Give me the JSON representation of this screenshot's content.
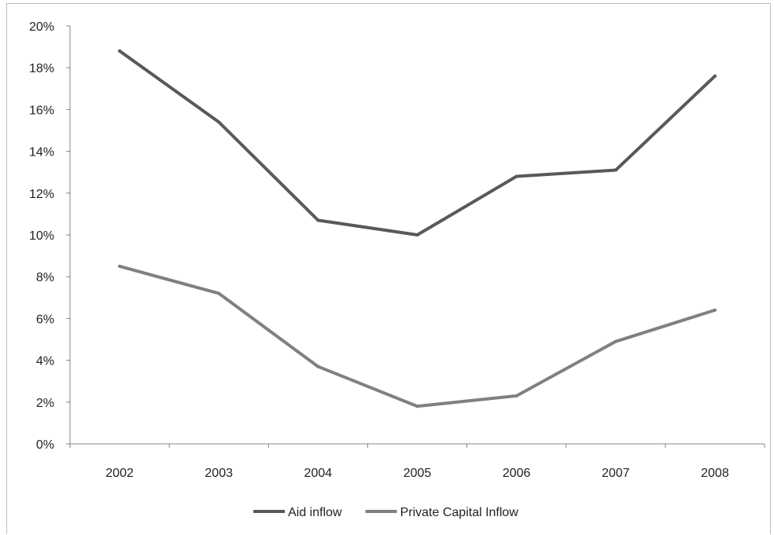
{
  "chart_data": {
    "type": "line",
    "title": "",
    "xlabel": "",
    "ylabel": "",
    "categories": [
      "2002",
      "2003",
      "2004",
      "2005",
      "2006",
      "2007",
      "2008"
    ],
    "ylim": [
      0,
      0.2
    ],
    "y_ticks": [
      "0%",
      "2%",
      "4%",
      "6%",
      "8%",
      "10%",
      "12%",
      "14%",
      "16%",
      "18%",
      "20%"
    ],
    "grid": false,
    "legend_position": "bottom",
    "series": [
      {
        "name": "Aid inflow",
        "color": "#595959",
        "values": [
          0.188,
          0.154,
          0.107,
          0.1,
          0.128,
          0.131,
          0.176
        ]
      },
      {
        "name": "Private Capital Inflow",
        "color": "#808080",
        "values": [
          0.085,
          0.072,
          0.037,
          0.018,
          0.023,
          0.049,
          0.064
        ]
      }
    ]
  }
}
